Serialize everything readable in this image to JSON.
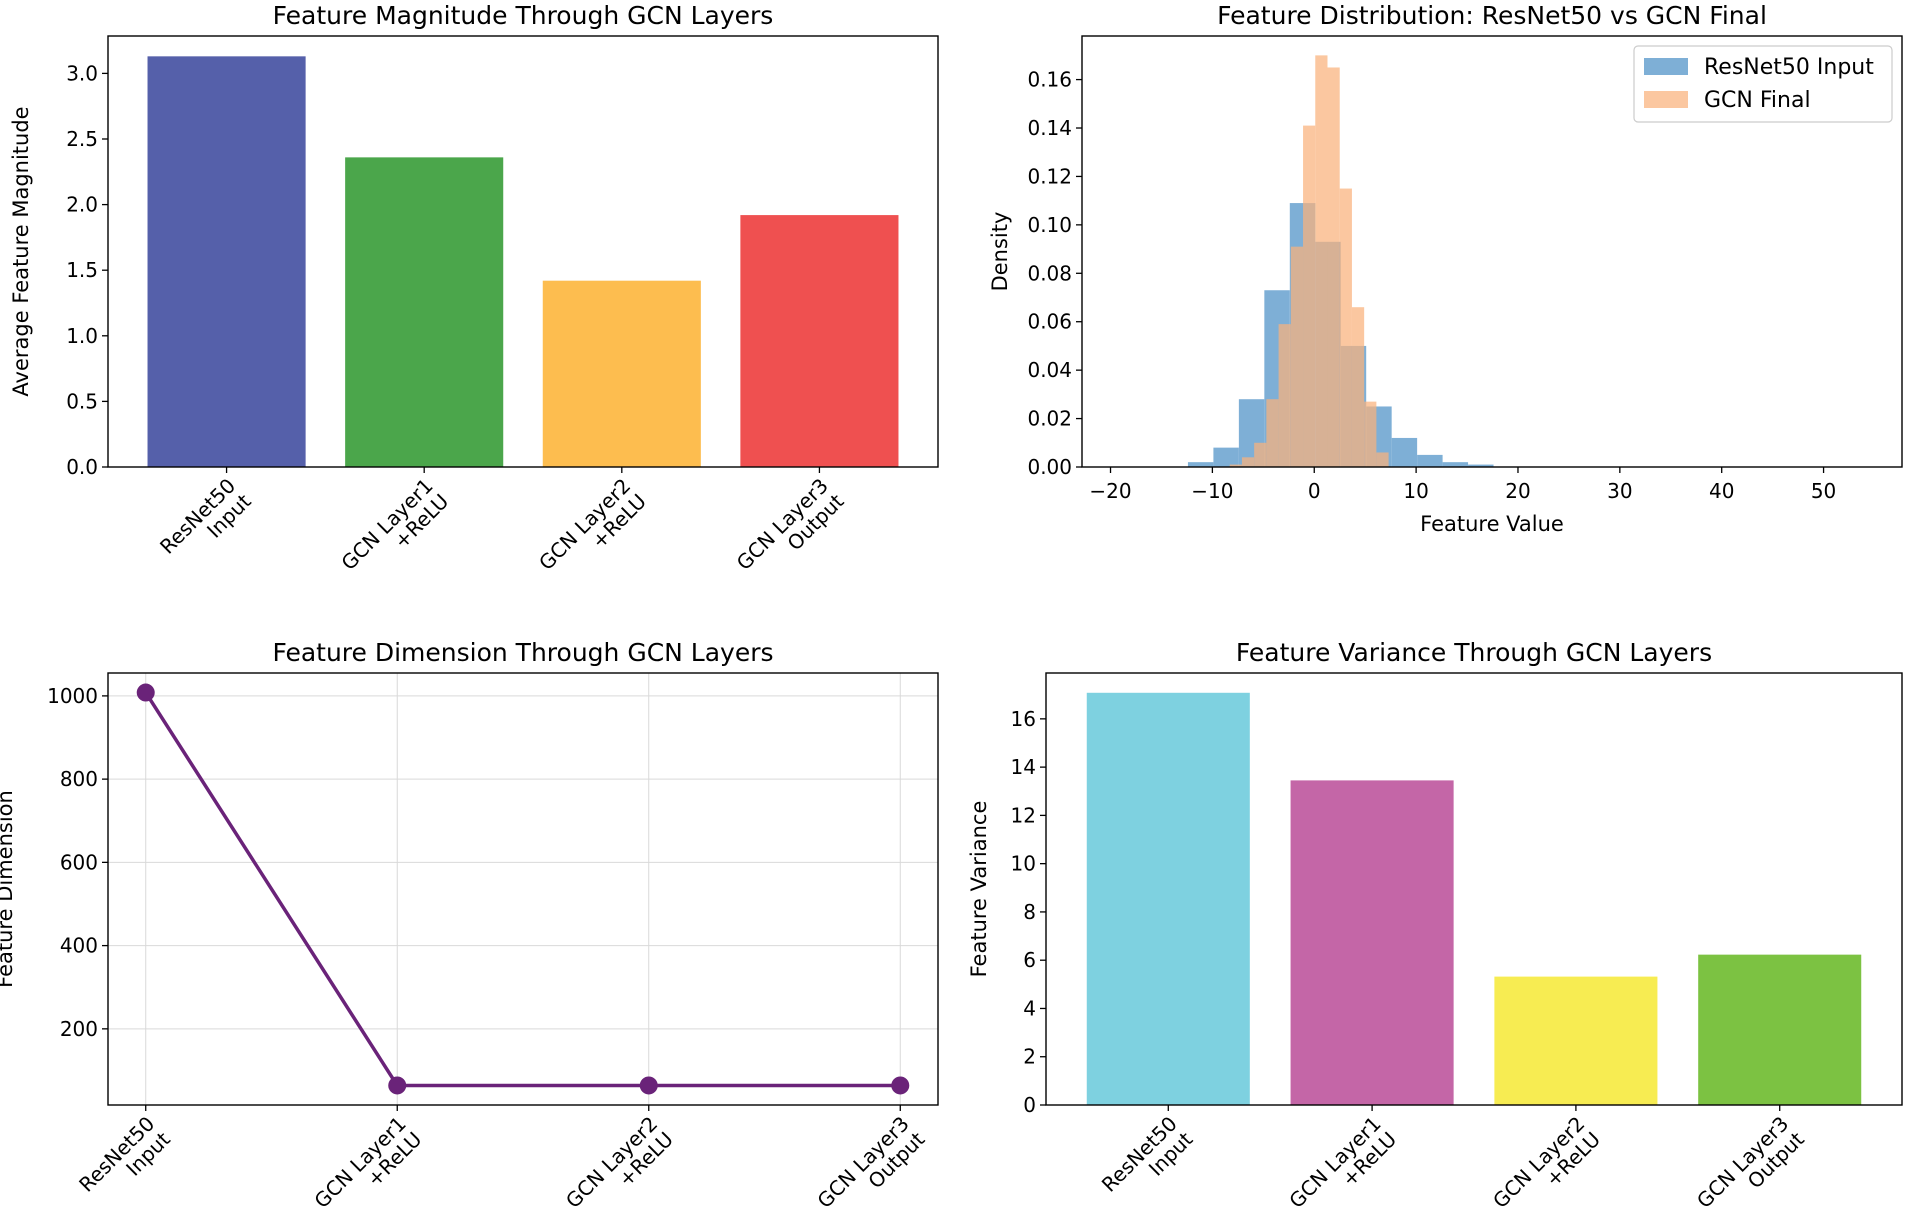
{
  "chart_data": [
    {
      "type": "bar",
      "title": "Feature Magnitude Through GCN Layers",
      "xlabel": "",
      "ylabel": "Average Feature Magnitude",
      "categories": [
        [
          "ResNet50",
          "Input"
        ],
        [
          "GCN Layer1",
          "+ReLU"
        ],
        [
          "GCN Layer2",
          "+ReLU"
        ],
        [
          "GCN Layer3",
          "Output"
        ]
      ],
      "values": [
        3.13,
        2.36,
        1.42,
        1.92
      ],
      "colors": [
        "#5560aa",
        "#4ba64b",
        "#fdbd4f",
        "#ef5050"
      ],
      "ylim": [
        0,
        3.285
      ],
      "yticks": [
        0,
        0.5,
        1.0,
        1.5,
        2.0,
        2.5,
        3.0
      ],
      "ytick_labels": [
        "0.0",
        "0.5",
        "1.0",
        "1.5",
        "2.0",
        "2.5",
        "3.0"
      ],
      "grid": false
    },
    {
      "type": "histogram",
      "title": "Feature Distribution: ResNet50 vs GCN Final",
      "xlabel": "Feature Value",
      "ylabel": "Density",
      "xlim": [
        -22.8,
        57.7
      ],
      "ylim": [
        0,
        0.178
      ],
      "xticks": [
        -20,
        -10,
        0,
        10,
        20,
        30,
        40,
        50
      ],
      "xtick_labels": [
        "−20",
        "−10",
        "0",
        "10",
        "20",
        "30",
        "40",
        "50"
      ],
      "yticks": [
        0,
        0.02,
        0.04,
        0.06,
        0.08,
        0.1,
        0.12,
        0.14,
        0.16
      ],
      "ytick_labels": [
        "0.00",
        "0.02",
        "0.04",
        "0.06",
        "0.08",
        "0.10",
        "0.12",
        "0.14",
        "0.16"
      ],
      "legend_position": "top-right",
      "series": [
        {
          "name": "ResNet50 Input",
          "color": "#7eafd6",
          "bin_edges": [
            -12.4,
            -9.9,
            -7.4,
            -4.9,
            -2.4,
            0.1,
            2.6,
            5.1,
            7.6,
            10.1,
            12.6,
            15.1,
            17.6
          ],
          "density": [
            0.002,
            0.008,
            0.028,
            0.073,
            0.109,
            0.093,
            0.05,
            0.025,
            0.012,
            0.005,
            0.002,
            0.001
          ]
        },
        {
          "name": "GCN Final",
          "color": "#f9b27c",
          "bin_edges": [
            -8.3,
            -7.1,
            -5.9,
            -4.7,
            -3.5,
            -2.3,
            -1.1,
            0.1,
            1.3,
            2.5,
            3.7,
            4.9,
            6.1,
            7.3
          ],
          "density": [
            0.001,
            0.004,
            0.01,
            0.028,
            0.059,
            0.091,
            0.141,
            0.17,
            0.165,
            0.115,
            0.066,
            0.027,
            0.006
          ]
        }
      ],
      "grid": false
    },
    {
      "type": "line",
      "title": "Feature Dimension Through GCN Layers",
      "xlabel": "",
      "ylabel": "Feature Dimension",
      "categories": [
        [
          "ResNet50",
          "Input"
        ],
        [
          "GCN Layer1",
          "+ReLU"
        ],
        [
          "GCN Layer2",
          "+ReLU"
        ],
        [
          "GCN Layer3",
          "Output"
        ]
      ],
      "values": [
        1008,
        64,
        64,
        64
      ],
      "color": "#6a2379",
      "ylim": [
        17,
        1055
      ],
      "yticks": [
        200,
        400,
        600,
        800,
        1000
      ],
      "ytick_labels": [
        "200",
        "400",
        "600",
        "800",
        "1000"
      ],
      "grid": true
    },
    {
      "type": "bar",
      "title": "Feature Variance Through GCN Layers",
      "xlabel": "",
      "ylabel": "Feature Variance",
      "categories": [
        [
          "ResNet50",
          "Input"
        ],
        [
          "GCN Layer1",
          "+ReLU"
        ],
        [
          "GCN Layer2",
          "+ReLU"
        ],
        [
          "GCN Layer3",
          "Output"
        ]
      ],
      "values": [
        17.08,
        13.45,
        5.32,
        6.23
      ],
      "colors": [
        "#7ed1e0",
        "#c466a7",
        "#f7ec52",
        "#7cc242"
      ],
      "ylim": [
        0,
        17.9
      ],
      "yticks": [
        0,
        2,
        4,
        6,
        8,
        10,
        12,
        14,
        16
      ],
      "ytick_labels": [
        "0",
        "2",
        "4",
        "6",
        "8",
        "10",
        "12",
        "14",
        "16"
      ],
      "grid": false
    }
  ]
}
